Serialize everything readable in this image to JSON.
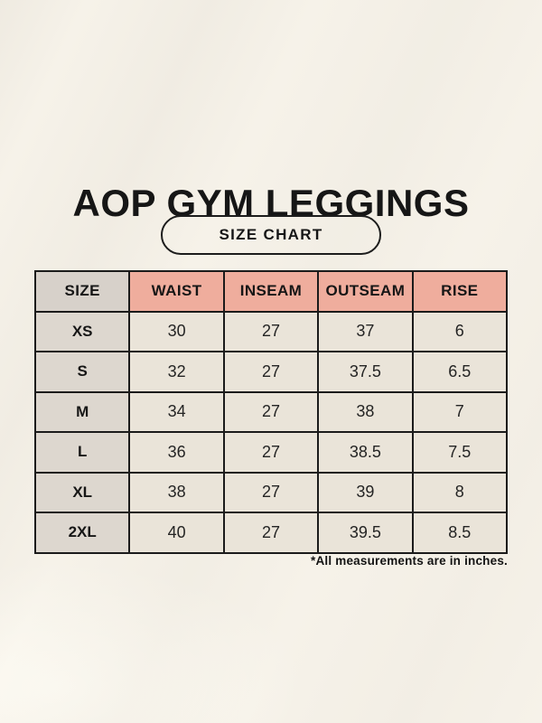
{
  "page": {
    "title": "AOP GYM LEGGINGS",
    "badge_label": "SIZE CHART",
    "footnote": "*All measurements are in inches."
  },
  "colors": {
    "background": "#f6f2e9",
    "header_pink": "#efad9d",
    "header_gray": "#d7d1ca",
    "size_column": "#ddd7cf",
    "value_cell": "#eae4d9",
    "border": "#1b1b1b",
    "text": "#161616"
  },
  "chart_data": {
    "type": "table",
    "title": "AOP GYM LEGGINGS",
    "subtitle": "SIZE CHART",
    "units_note": "*All measurements are in inches.",
    "columns": [
      "SIZE",
      "WAIST",
      "INSEAM",
      "OUTSEAM",
      "RISE"
    ],
    "rows": [
      [
        "XS",
        "30",
        "27",
        "37",
        "6"
      ],
      [
        "S",
        "32",
        "27",
        "37.5",
        "6.5"
      ],
      [
        "M",
        "34",
        "27",
        "38",
        "7"
      ],
      [
        "L",
        "36",
        "27",
        "38.5",
        "7.5"
      ],
      [
        "XL",
        "38",
        "27",
        "39",
        "8"
      ],
      [
        "2XL",
        "40",
        "27",
        "39.5",
        "8.5"
      ]
    ]
  }
}
